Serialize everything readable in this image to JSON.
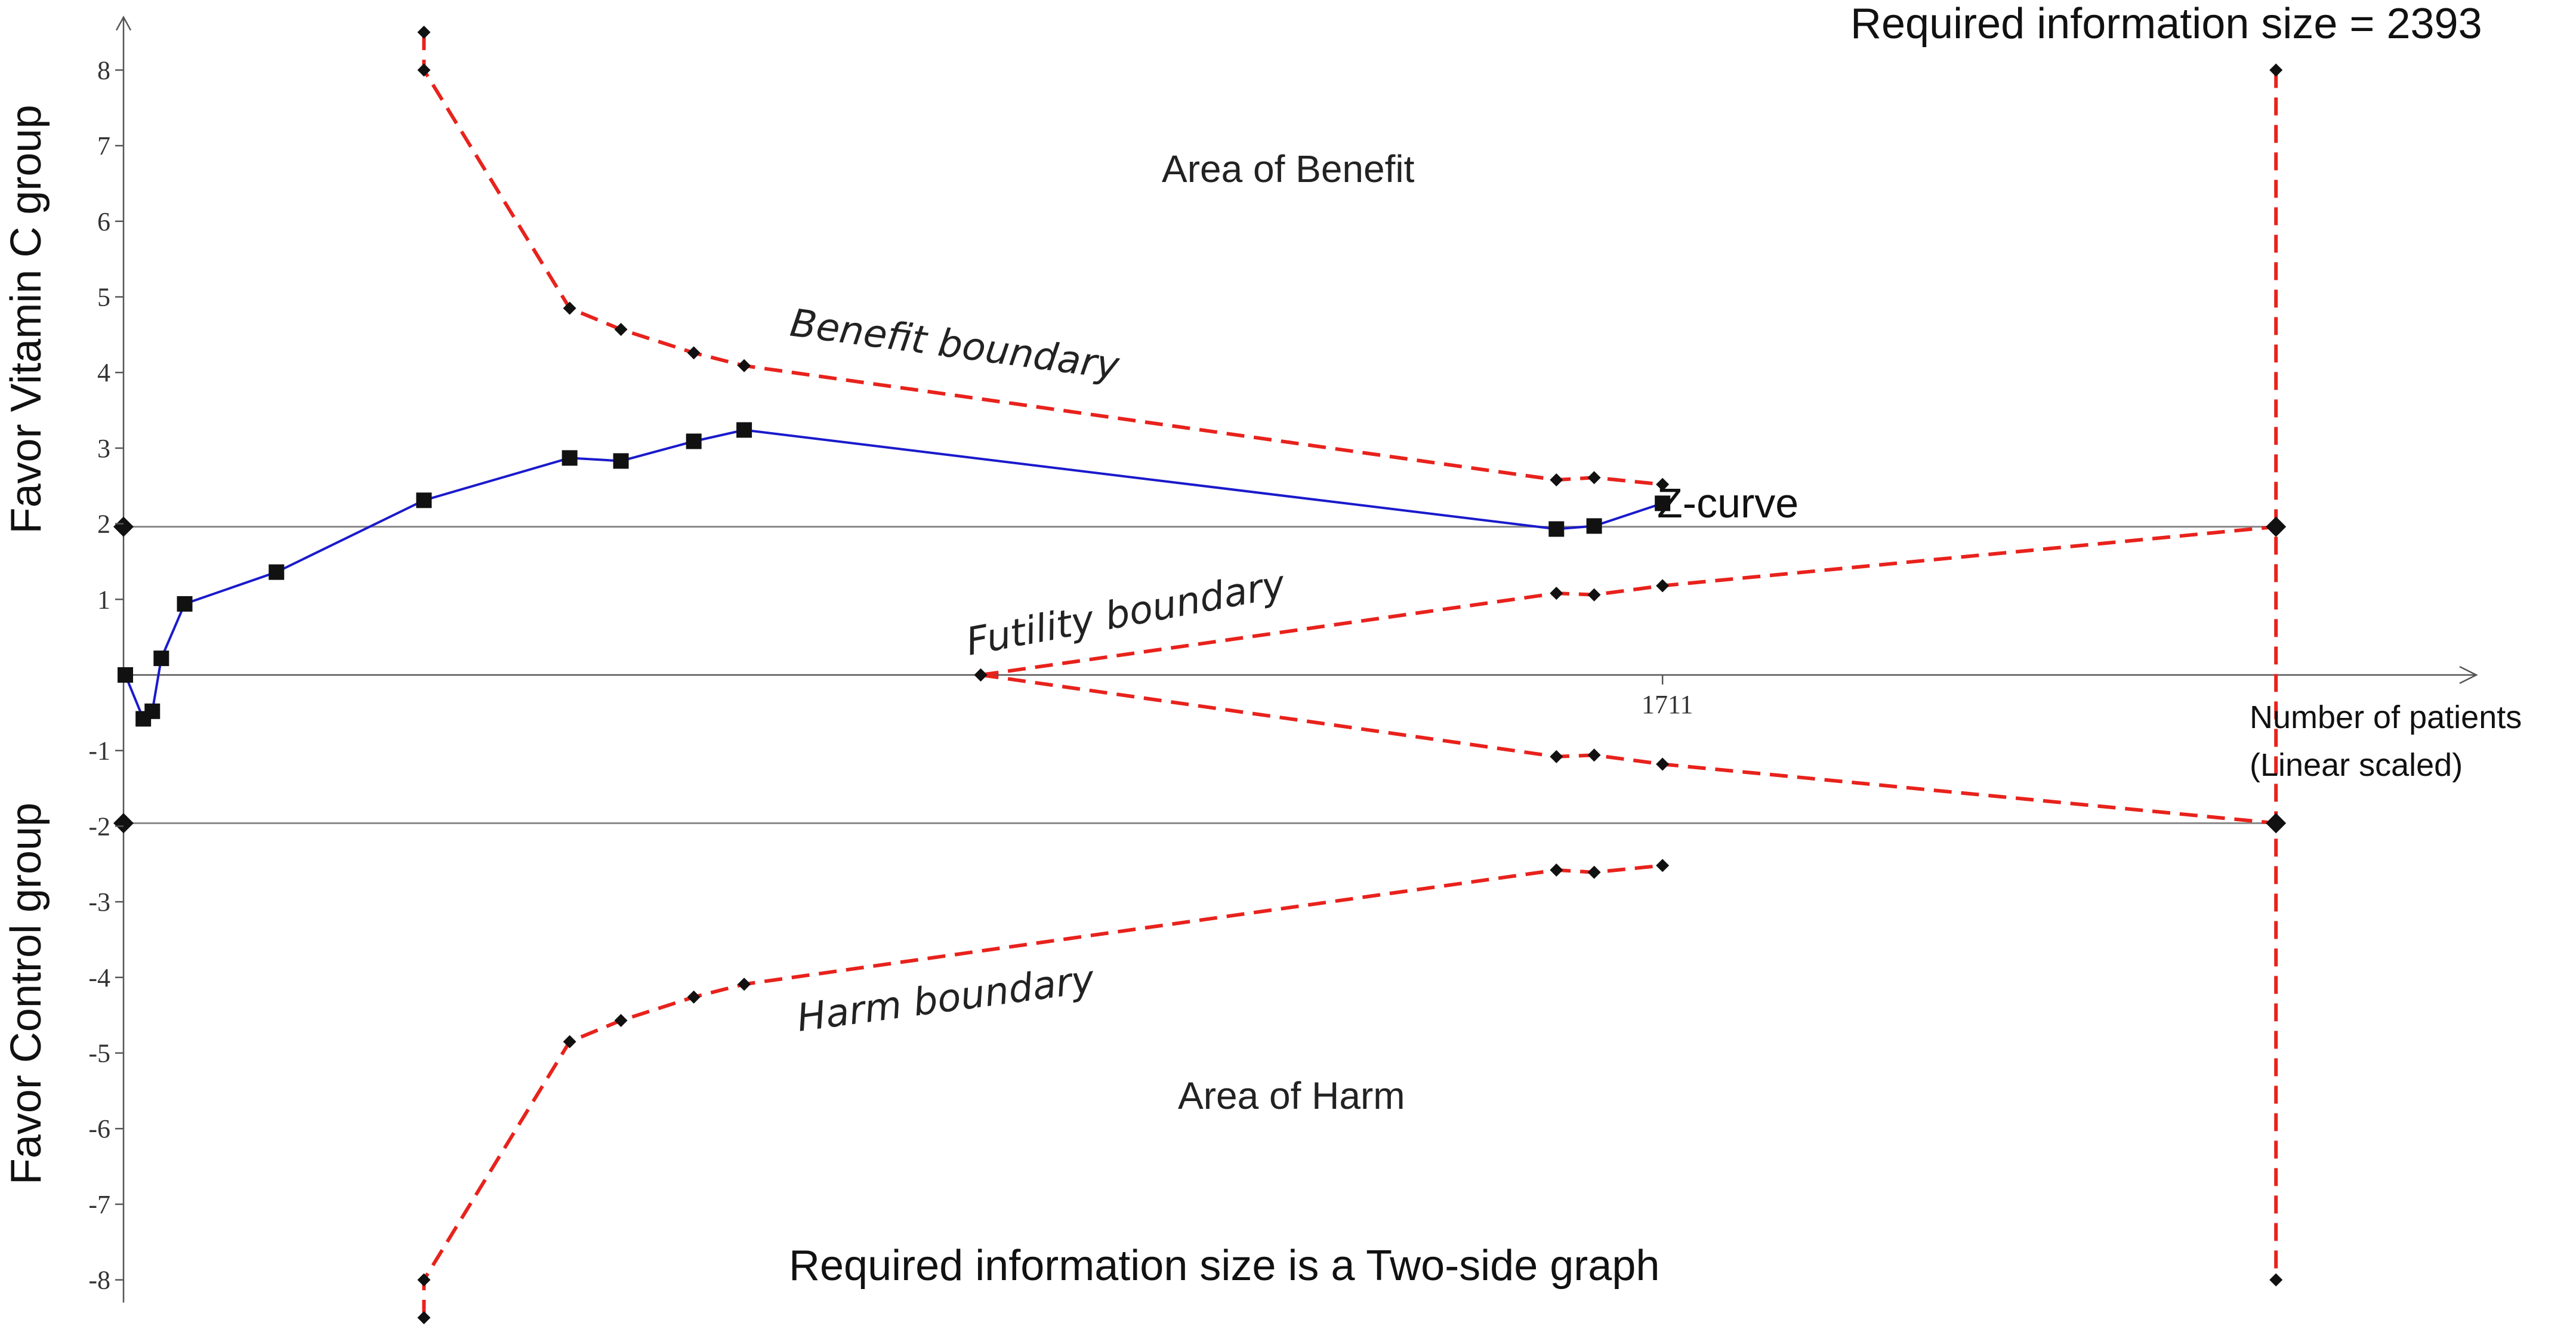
{
  "chart_data": {
    "type": "line",
    "title": "Required information size = 2393",
    "subtitle": "Required information size is a Two-side graph",
    "xlabel": "Number of patients\n(Linear scaled)",
    "xlabel_lines": [
      "Number of patients",
      "(Linear scaled)"
    ],
    "ylabel_upper": "Favor Vitamin C group",
    "ylabel_lower": "Favor Control group",
    "xlim": [
      0,
      2560
    ],
    "ylim": [
      -8.5,
      8.5
    ],
    "y_ticks": [
      -8,
      -7,
      -6,
      -5,
      -4,
      -3,
      -2,
      -1,
      1,
      2,
      3,
      4,
      5,
      6,
      7,
      8
    ],
    "x_tick_labels": [
      {
        "x": 1711,
        "label": "1711"
      }
    ],
    "required_information_size": 2393,
    "significance_lines": [
      -1.96,
      1.96
    ],
    "annotations": {
      "area_benefit": "Area of Benefit",
      "area_harm": "Area of Harm",
      "benefit_label": "Benefit boundary",
      "futility_label": "Futility boundary",
      "harm_label": "Harm boundary",
      "zcurve_label": "Z-curve"
    },
    "series": [
      {
        "name": "Z-curve",
        "color": "#1a1acc",
        "marker": "square",
        "x": [
          2,
          22,
          32,
          42,
          68,
          170,
          334,
          496,
          553,
          634,
          690,
          1593,
          1635,
          1711
        ],
        "y": [
          0.0,
          -0.58,
          -0.48,
          0.22,
          0.94,
          1.36,
          2.31,
          2.87,
          2.83,
          3.09,
          3.24,
          1.93,
          1.97,
          2.27
        ]
      },
      {
        "name": "Benefit boundary",
        "color": "#e8221c",
        "x": [
          334,
          334,
          496,
          553,
          634,
          690,
          1593,
          1635,
          1711
        ],
        "y": [
          8.5,
          8.0,
          4.85,
          4.57,
          4.26,
          4.09,
          2.58,
          2.61,
          2.52
        ]
      },
      {
        "name": "Harm boundary",
        "color": "#e8221c",
        "x": [
          334,
          334,
          496,
          553,
          634,
          690,
          1593,
          1635,
          1711
        ],
        "y": [
          -8.5,
          -8.0,
          -4.85,
          -4.57,
          -4.26,
          -4.09,
          -2.58,
          -2.61,
          -2.52
        ]
      },
      {
        "name": "Futility boundary (upper)",
        "color": "#e8221c",
        "x": [
          953,
          1593,
          1635,
          1711,
          2393
        ],
        "y": [
          0.0,
          1.08,
          1.06,
          1.18,
          1.96
        ]
      },
      {
        "name": "Futility boundary (lower)",
        "color": "#e8221c",
        "x": [
          953,
          1593,
          1635,
          1711,
          2393
        ],
        "y": [
          0.0,
          -1.08,
          -1.06,
          -1.18,
          -1.96
        ]
      },
      {
        "name": "Required information size line",
        "color": "#e8221c",
        "x": [
          2393,
          2393,
          2393,
          2393
        ],
        "y": [
          8.0,
          1.96,
          -1.96,
          -8.0
        ]
      }
    ],
    "grid": false,
    "legend": "none"
  }
}
